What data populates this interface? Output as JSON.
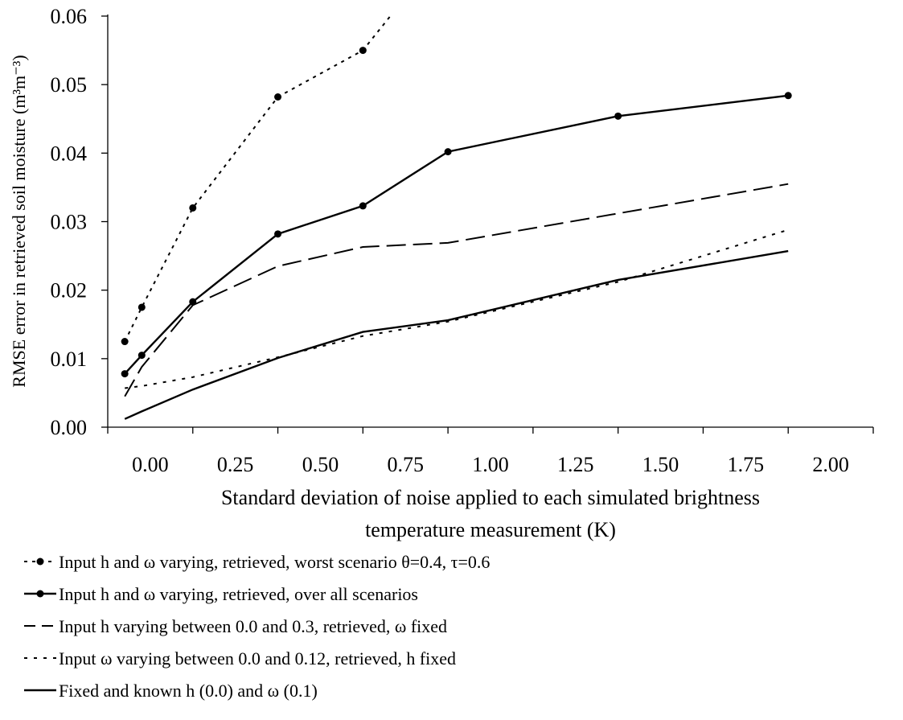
{
  "chart_data": {
    "type": "line",
    "xlabel_lines": [
      "Standard deviation of noise applied to each simulated brightness",
      "temperature measurement (K)"
    ],
    "ylabel": "RMSE error in retrieved soil moisture (m³m⁻³)",
    "x_axis_type": "category",
    "x_tick_labels": [
      "0.00",
      "0.25",
      "0.50",
      "0.75",
      "1.00",
      "1.25",
      "1.50",
      "1.75",
      "2.00"
    ],
    "ylim": [
      0,
      0.06
    ],
    "y_tick_labels": [
      "0.00",
      "0.01",
      "0.02",
      "0.03",
      "0.04",
      "0.05",
      "0.06"
    ],
    "grid": false,
    "legend_position": "bottom",
    "series": [
      {
        "name": "Input h and ω varying, retrieved, worst scenario θ=0.4, τ=0.6",
        "style": "dotted-markers",
        "x": [
          0.05,
          0.1,
          0.25,
          0.5,
          0.75,
          0.85
        ],
        "y": [
          0.0125,
          0.0175,
          0.032,
          0.0482,
          0.055,
          0.0612
        ]
      },
      {
        "name": "Input h and ω varying, retrieved, over all scenarios",
        "style": "solid-markers",
        "x": [
          0.05,
          0.1,
          0.25,
          0.5,
          0.75,
          1.0,
          1.5,
          2.0
        ],
        "y": [
          0.0078,
          0.0105,
          0.0183,
          0.0282,
          0.0323,
          0.0402,
          0.0454,
          0.0484
        ]
      },
      {
        "name": "Input h varying between 0.0 and 0.3, retrieved, ω fixed",
        "style": "long-dash",
        "x": [
          0.05,
          0.1,
          0.25,
          0.5,
          0.75,
          1.0,
          1.5,
          2.0
        ],
        "y": [
          0.0045,
          0.0088,
          0.0178,
          0.0235,
          0.0263,
          0.0269,
          0.0312,
          0.0355
        ]
      },
      {
        "name": "Input ω varying between 0.0 and 0.12, retrieved, h fixed",
        "style": "short-dot",
        "x": [
          0.05,
          0.1,
          0.25,
          0.5,
          0.75,
          1.0,
          1.5,
          2.0
        ],
        "y": [
          0.0057,
          0.006,
          0.0073,
          0.0102,
          0.0133,
          0.0154,
          0.0212,
          0.0288
        ]
      },
      {
        "name": "Fixed and known h (0.0) and ω (0.1)",
        "style": "solid",
        "x": [
          0.05,
          0.1,
          0.25,
          0.5,
          0.75,
          1.0,
          1.5,
          2.0
        ],
        "y": [
          0.0012,
          0.0023,
          0.0055,
          0.0101,
          0.0139,
          0.0156,
          0.0215,
          0.0257
        ]
      }
    ]
  }
}
